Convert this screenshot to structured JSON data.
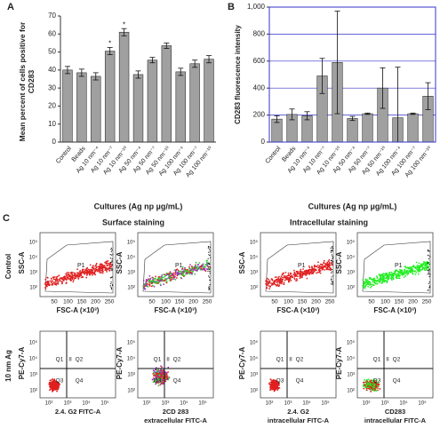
{
  "chart_data": [
    {
      "type": "bar",
      "panel_label": "A",
      "ylabel": "Mean percent of cells positive for CD283",
      "xlabel": "Cultures (Ag np µg/mL)",
      "categories": [
        "Control",
        "Beads",
        "Ag 10 nm⁻⁴",
        "Ag 10 nm⁻⁷",
        "Ag 10 nm⁻¹⁰",
        "Ag 50 nm⁻⁴",
        "Ag 50 nm⁻⁷",
        "Ag 50 nm⁻¹⁰",
        "Ag 100 nm⁻⁴",
        "Ag 100 nm⁻⁷",
        "Ag 100 nm⁻¹⁰"
      ],
      "values": [
        40,
        38.5,
        36.5,
        50.5,
        61,
        37.5,
        45.5,
        53.5,
        39,
        43.5,
        46
      ],
      "errors": [
        2,
        2,
        2,
        2,
        2,
        2,
        1.5,
        1.5,
        2,
        2,
        2
      ],
      "color": "#a0a0a0",
      "annotations": [
        {
          "text": "*",
          "category": "Ag 10 nm⁻⁷"
        },
        {
          "text": "*",
          "category": "Ag 10 nm⁻¹⁰"
        }
      ],
      "ylim": [
        0,
        70
      ],
      "yticks": [
        0,
        10,
        20,
        30,
        40,
        50,
        60,
        70
      ],
      "grid": false
    },
    {
      "type": "bar",
      "panel_label": "B",
      "ylabel": "CD283 fluorescence intensity",
      "xlabel": "Cultures (Ag np µg/mL)",
      "categories": [
        "Control",
        "Beads",
        "Ag 10 nm⁻⁴",
        "Ag 10 nm⁻⁷",
        "Ag 10 nm⁻¹⁰",
        "Ag 50 nm⁻⁴",
        "Ag 50 nm⁻⁷",
        "Ag 50 nm⁻¹⁰",
        "Ag 100 nm⁻⁴",
        "Ag 100 nm⁻⁷",
        "Ag 100 nm⁻¹⁰"
      ],
      "values": [
        170,
        205,
        195,
        490,
        590,
        175,
        210,
        400,
        180,
        210,
        340
      ],
      "errors": [
        25,
        40,
        30,
        130,
        380,
        15,
        5,
        150,
        375,
        5,
        100
      ],
      "color": "#a0a0a0",
      "grid": true,
      "grid_color": "#3333cc",
      "ylim": [
        0,
        1000
      ],
      "yticks": [
        0,
        200,
        400,
        600,
        800,
        {
          "value": 1000,
          "label": "1,000"
        }
      ]
    }
  ],
  "flow_cytometry": {
    "panel_label": "C",
    "headings": [
      "Surface staining",
      "Intracellular staining"
    ],
    "row_labels": [
      "Control",
      "10 nm Ag"
    ],
    "scatter_y_label": "SSC-A",
    "scatter_x_label": "FSC-A (×10³)",
    "scatter_xticks": [
      "50",
      "100",
      "150",
      "200",
      "250"
    ],
    "log_ticks": [
      "10²",
      "10³",
      "10⁴",
      "10⁵"
    ],
    "gate_label": "P1",
    "quadrant_y_label": "PE-Cy7-A",
    "quadrants": [
      "Q1",
      "II",
      "Q2",
      "Q3",
      "Q4"
    ],
    "quadrant_x_labels": [
      [
        "2.4. G2 FITC-A"
      ],
      [
        "2CD 283",
        "extracellular FITC-A"
      ],
      [
        "2.4. G2",
        "intracellular FITC-A"
      ],
      [
        "CD283",
        "intracellular FITC-A"
      ]
    ]
  }
}
